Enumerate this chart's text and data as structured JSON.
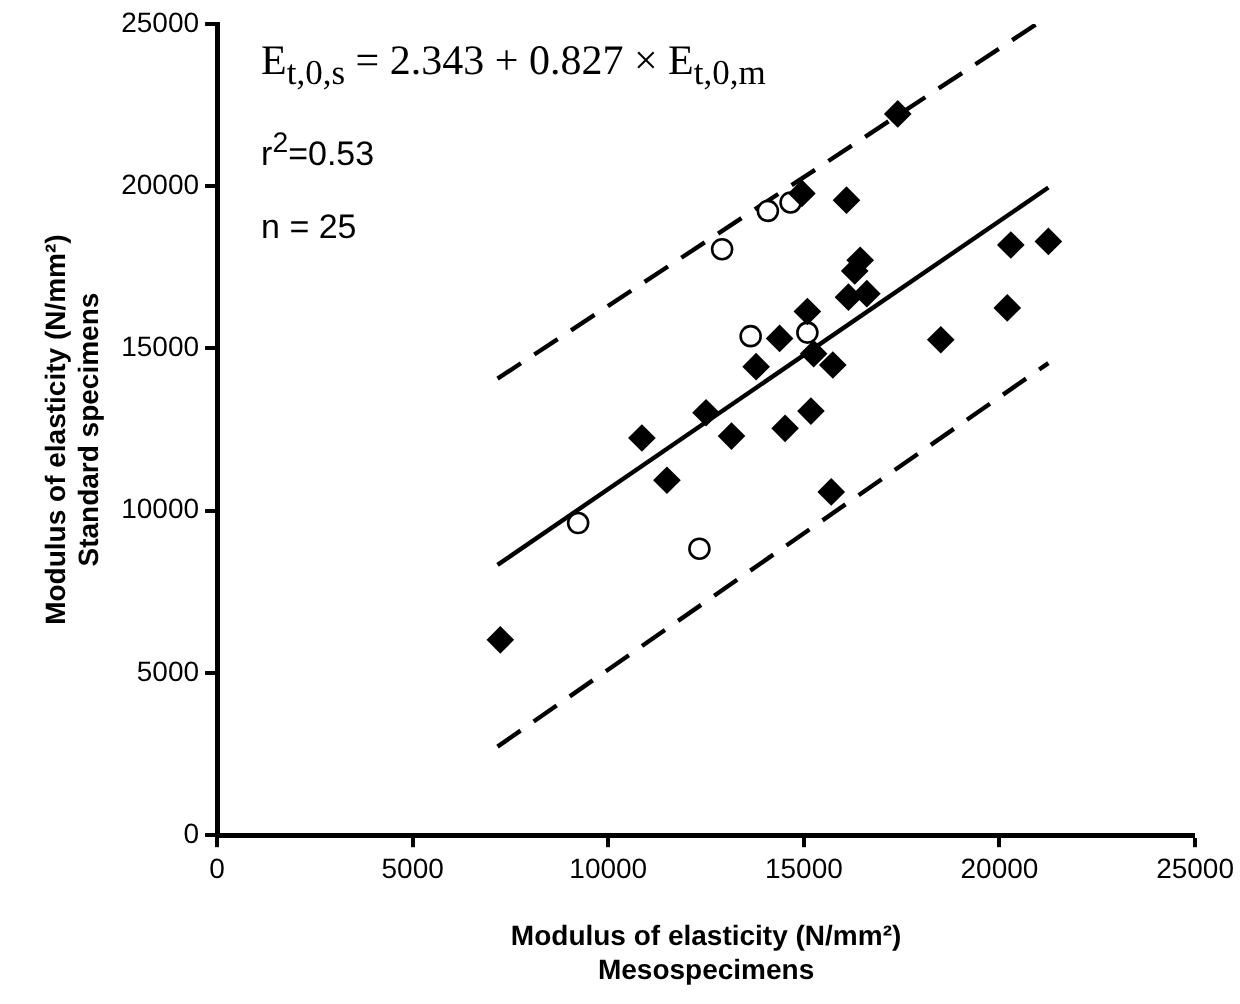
{
  "chart_data": {
    "type": "scatter",
    "xlabel": "Modulus of elasticity (N/mm²)\nMesospecimens",
    "ylabel": "Modulus of elasticity (N/mm²)\nStandard specimens",
    "xlim": [
      0,
      25000
    ],
    "xticks": [
      0,
      5000,
      10000,
      15000,
      20000,
      25000
    ],
    "ylim": [
      0,
      25000
    ],
    "yticks": [
      0,
      5000,
      10000,
      15000,
      20000,
      25000
    ],
    "grid": false,
    "legend": false,
    "annotations": [
      "E$_{t,0,s}$ = 2.343 + 0.827 × E$_{t,0,m}$",
      "r$^{2}$=0.53",
      "n = 25"
    ],
    "series": [
      {
        "marker": "diamond",
        "color": "#000000",
        "x": [
          7240,
          10860,
          11500,
          12500,
          13150,
          14380,
          13780,
          14520,
          15180,
          15250,
          15740,
          15700,
          15090,
          14950,
          16090,
          16440,
          16300,
          16140,
          16610,
          17400,
          18500,
          20200,
          20290,
          21250
        ],
        "values": [
          6020,
          12240,
          10940,
          13020,
          12300,
          15310,
          14440,
          12540,
          13070,
          14840,
          14490,
          10580,
          16140,
          19780,
          19570,
          17720,
          17390,
          16580,
          16690,
          22230,
          15270,
          16250,
          18190,
          18300
        ]
      },
      {
        "marker": "circle",
        "color": "#000000",
        "x": [
          9230,
          12330,
          12910,
          14080,
          14660,
          13640,
          15090
        ],
        "values": [
          9620,
          8830,
          18060,
          19240,
          19500,
          15380,
          15490
        ]
      },
      {
        "type": "line",
        "line_style": "solid",
        "color": "#000000",
        "x": [
          7170,
          21250
        ],
        "values": [
          8330,
          19960
        ]
      },
      {
        "type": "line",
        "line_style": "dashed",
        "color": "#000000",
        "x": [
          7170,
          20950
        ],
        "values": [
          14070,
          25000
        ]
      },
      {
        "type": "line",
        "line_style": "dashed",
        "color": "#000000",
        "x": [
          7170,
          21250
        ],
        "values": [
          2730,
          14550
        ]
      }
    ]
  }
}
